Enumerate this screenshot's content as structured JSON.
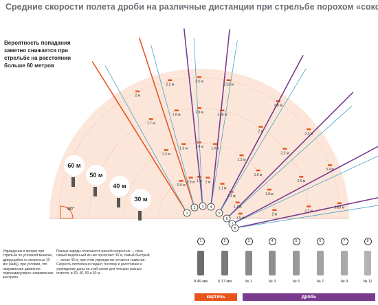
{
  "title": "Средние скорости полета дроби на различные дистанции при стрельбе порохом «сокол»",
  "intro": "Вероятность попадания заметно снижается при стрельбе на расстоянии больше 60 метров",
  "angle_label": "90°",
  "distance_labels": [
    "30 м",
    "40 м",
    "50 м",
    "60 м"
  ],
  "note_left": "Упреждение в метрах при стрельбе по условной мишени, движущейся со скоростью 10 м/с (зайц), при условии, что направление движения перпендикулярно направлению выстрела.",
  "note_right": "Разные заряды отличаются разной скоростью — пока самый медленный из них пролетает 30 м, самый быстрый — около 43 м, при этом упреждение остается таким же. Скорость постепенно падает, поэтому и расстояние и упреждение даны на этой схеме для четырех разных отметок: в 30, 40, 50 и 60 м.",
  "rays": [
    {
      "id": "1",
      "labels": [
        "0.9 м",
        "1.2 м",
        "1.7 м",
        "2 м"
      ]
    },
    {
      "id": "2",
      "labels": [
        "0.9 м",
        "1.3 м",
        "1.8 м",
        "2.2 м"
      ]
    },
    {
      "id": "3",
      "labels": [
        "1 м",
        "1.4 м",
        "1.9 м",
        "2.5 м"
      ]
    },
    {
      "id": "4",
      "labels": [
        "1 м",
        "1.4 м",
        "1.95 м",
        "2.52 м"
      ]
    },
    {
      "id": "5",
      "labels": [
        "1.1 м",
        "1.5 м",
        "2 м",
        "2.8 м"
      ]
    },
    {
      "id": "6",
      "labels": [
        "1.1 м",
        "1.6 м",
        "2.2 м",
        "3.3 м"
      ]
    },
    {
      "id": "7",
      "labels": [
        "1.1 м",
        "1.8 м",
        "2.6 м",
        "3.4 м"
      ]
    },
    {
      "id": "8",
      "labels": [
        "1.5 м",
        "2 м",
        "2.7 м",
        "3.83 м"
      ]
    }
  ],
  "pellets": [
    {
      "id": "1",
      "label": "8.49 мм",
      "color": "#6d6d6d"
    },
    {
      "id": "2",
      "label": "6.17 мм",
      "color": "#7a7a7a"
    },
    {
      "id": "3",
      "label": "№ 1",
      "color": "#8a8a8a"
    },
    {
      "id": "4",
      "label": "№ 3",
      "color": "#8f8f8f"
    },
    {
      "id": "5",
      "label": "№ 5",
      "color": "#999999"
    },
    {
      "id": "6",
      "label": "№ 7",
      "color": "#a3a3a3"
    },
    {
      "id": "7",
      "label": "№ 9",
      "color": "#aaaaaa"
    },
    {
      "id": "8",
      "label": "№ 11",
      "color": "#b3b3b3"
    }
  ],
  "legend": {
    "kartech": "картечь",
    "drob": "дробь"
  },
  "colors": {
    "fan": "#fbe6d9",
    "orange": "#e8541e",
    "purple": "#7a3b8f",
    "blue": "#4aa3c7",
    "gray": "#6b7077"
  }
}
